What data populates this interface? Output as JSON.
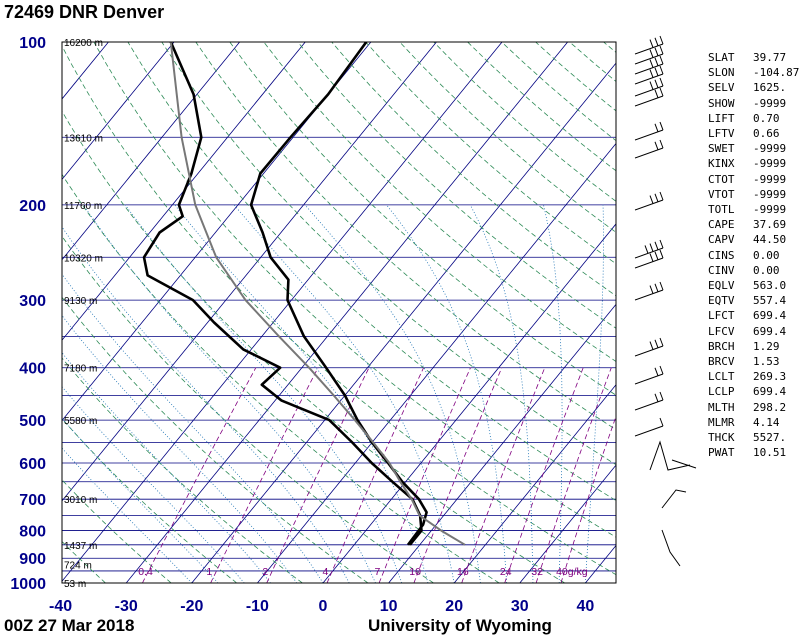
{
  "header": {
    "title": "72469 DNR Denver",
    "timestamp": "00Z 27 Mar 2018",
    "institution": "University of Wyoming"
  },
  "chart_data": {
    "type": "line",
    "chart_kind": "Skew-T log-P diagram",
    "pressure_levels": [
      100,
      200,
      300,
      400,
      500,
      600,
      700,
      800,
      900,
      1000
    ],
    "pressure_range": [
      1000,
      100
    ],
    "temperature_range": [
      -40,
      45
    ],
    "temperature_ticks": [
      -40,
      -30,
      -20,
      -10,
      0,
      10,
      20,
      30,
      40
    ],
    "height_labels": [
      {
        "p": 100,
        "label": "16200 m"
      },
      {
        "p": 150,
        "label": "13610 m"
      },
      {
        "p": 200,
        "label": "11760 m"
      },
      {
        "p": 250,
        "label": "10320 m"
      },
      {
        "p": 300,
        "label": "9130 m"
      },
      {
        "p": 400,
        "label": "7180 m"
      },
      {
        "p": 500,
        "label": "5580 m"
      },
      {
        "p": 700,
        "label": "3010 m"
      },
      {
        "p": 850,
        "label": "1437 m"
      },
      {
        "p": 925,
        "label": "724 m"
      },
      {
        "p": 1000,
        "label": "53 m"
      }
    ],
    "mixing_ratio_labels": [
      "0.4",
      "1",
      "2",
      "4",
      "7",
      "10",
      "16",
      "24",
      "32",
      "40g/kg"
    ],
    "series": [
      {
        "role": "temperature",
        "color": "#000000",
        "points": [
          {
            "p": 850,
            "t": 8.2
          },
          {
            "p": 780,
            "t": 8.0
          },
          {
            "p": 740,
            "t": 7.0
          },
          {
            "p": 700,
            "t": 4.2
          },
          {
            "p": 650,
            "t": -0.5
          },
          {
            "p": 600,
            "t": -5.0
          },
          {
            "p": 550,
            "t": -10.0
          },
          {
            "p": 500,
            "t": -15.0
          },
          {
            "p": 450,
            "t": -20.0
          },
          {
            "p": 400,
            "t": -26.3
          },
          {
            "p": 350,
            "t": -33.6
          },
          {
            "p": 300,
            "t": -40.6
          },
          {
            "p": 275,
            "t": -43.0
          },
          {
            "p": 250,
            "t": -48.5
          },
          {
            "p": 225,
            "t": -52.8
          },
          {
            "p": 200,
            "t": -58.0
          },
          {
            "p": 175,
            "t": -60.5
          },
          {
            "p": 150,
            "t": -60.4
          },
          {
            "p": 125,
            "t": -60.0
          },
          {
            "p": 100,
            "t": -60.7
          }
        ]
      },
      {
        "role": "dewpoint",
        "color": "#000000",
        "points": [
          {
            "p": 850,
            "t": 8.5
          },
          {
            "p": 800,
            "t": 8.5
          },
          {
            "p": 750,
            "t": 6.4
          },
          {
            "p": 700,
            "t": 3.2
          },
          {
            "p": 650,
            "t": -2.0
          },
          {
            "p": 600,
            "t": -7.5
          },
          {
            "p": 550,
            "t": -13.0
          },
          {
            "p": 500,
            "t": -19.3
          },
          {
            "p": 460,
            "t": -29.0
          },
          {
            "p": 430,
            "t": -34.0
          },
          {
            "p": 400,
            "t": -33.3
          },
          {
            "p": 370,
            "t": -41.2
          },
          {
            "p": 330,
            "t": -49.0
          },
          {
            "p": 300,
            "t": -55.0
          },
          {
            "p": 270,
            "t": -65.0
          },
          {
            "p": 250,
            "t": -67.8
          },
          {
            "p": 225,
            "t": -68.5
          },
          {
            "p": 210,
            "t": -67.0
          },
          {
            "p": 200,
            "t": -69.0
          },
          {
            "p": 175,
            "t": -71.0
          },
          {
            "p": 150,
            "t": -74.0
          },
          {
            "p": 125,
            "t": -80.5
          },
          {
            "p": 100,
            "t": -90.5
          }
        ]
      },
      {
        "role": "parcel",
        "color": "#777777",
        "points": [
          {
            "p": 850,
            "t": 16.9
          },
          {
            "p": 800,
            "t": 11.5
          },
          {
            "p": 750,
            "t": 6.3
          },
          {
            "p": 700,
            "t": 3.1
          },
          {
            "p": 650,
            "t": -0.8
          },
          {
            "p": 600,
            "t": -4.8
          },
          {
            "p": 550,
            "t": -9.8
          },
          {
            "p": 500,
            "t": -15.4
          },
          {
            "p": 450,
            "t": -21.7
          },
          {
            "p": 400,
            "t": -28.9
          },
          {
            "p": 350,
            "t": -37.4
          },
          {
            "p": 300,
            "t": -47.0
          },
          {
            "p": 250,
            "t": -56.8
          },
          {
            "p": 200,
            "t": -66.5
          },
          {
            "p": 150,
            "t": -77.0
          },
          {
            "p": 100,
            "t": -90.5
          }
        ]
      }
    ]
  },
  "indices": [
    {
      "name": "SLAT",
      "value": "39.77"
    },
    {
      "name": "SLON",
      "value": "-104.87"
    },
    {
      "name": "SELV",
      "value": "1625."
    },
    {
      "name": "SHOW",
      "value": "-9999"
    },
    {
      "name": "LIFT",
      "value": "0.70"
    },
    {
      "name": "LFTV",
      "value": "0.66"
    },
    {
      "name": "SWET",
      "value": "-9999"
    },
    {
      "name": "KINX",
      "value": "-9999"
    },
    {
      "name": "CTOT",
      "value": "-9999"
    },
    {
      "name": "VTOT",
      "value": "-9999"
    },
    {
      "name": "TOTL",
      "value": "-9999"
    },
    {
      "name": "CAPE",
      "value": "37.69"
    },
    {
      "name": "CAPV",
      "value": "44.50"
    },
    {
      "name": "CINS",
      "value": "0.00"
    },
    {
      "name": "CINV",
      "value": "0.00"
    },
    {
      "name": "EQLV",
      "value": "563.0"
    },
    {
      "name": "EQTV",
      "value": "557.4"
    },
    {
      "name": "LFCT",
      "value": "699.4"
    },
    {
      "name": "LFCV",
      "value": "699.4"
    },
    {
      "name": "BRCH",
      "value": "1.29"
    },
    {
      "name": "BRCV",
      "value": "1.53"
    },
    {
      "name": "LCLT",
      "value": "269.3"
    },
    {
      "name": "LCLP",
      "value": "699.4"
    },
    {
      "name": "MLTH",
      "value": "298.2"
    },
    {
      "name": "MLMR",
      "value": "4.14"
    },
    {
      "name": "THCK",
      "value": "5527."
    },
    {
      "name": "PWAT",
      "value": "10.51"
    }
  ],
  "colors": {
    "isobar": "#000080",
    "isotherm": "#000080",
    "dry_adiabat": "#2e8b57",
    "moist_adiabat": "#1e73b4",
    "mixing_ratio": "#800080",
    "axis_label": "#00008b"
  }
}
